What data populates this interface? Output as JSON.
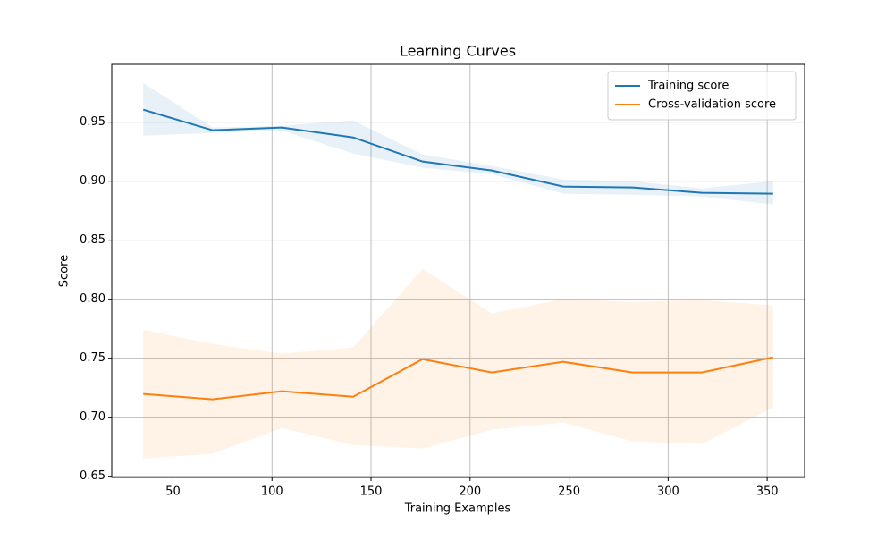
{
  "chart_data": {
    "type": "line",
    "title": "Learning Curves",
    "x_label": "Training Examples",
    "y_label": "Score",
    "x": [
      35,
      70,
      105,
      141,
      176,
      211,
      247,
      282,
      317,
      353
    ],
    "series": [
      {
        "name": "Training score",
        "color": "#1f77b4",
        "values": [
          0.9606,
          0.9432,
          0.9455,
          0.9371,
          0.9167,
          0.9091,
          0.8955,
          0.8947,
          0.8902,
          0.8894
        ],
        "band_lower": [
          0.9386,
          0.9409,
          0.943,
          0.9235,
          0.9114,
          0.906,
          0.8894,
          0.8886,
          0.8871,
          0.8803
        ],
        "band_upper": [
          0.9833,
          0.9455,
          0.947,
          0.9515,
          0.9227,
          0.9129,
          0.9015,
          0.9,
          0.894,
          0.9
        ]
      },
      {
        "name": "Cross-validation score",
        "color": "#ff7f0e",
        "values": [
          0.7197,
          0.7152,
          0.722,
          0.7174,
          0.7492,
          0.7379,
          0.747,
          0.7379,
          0.7379,
          0.7508
        ],
        "band_lower": [
          0.6652,
          0.669,
          0.6909,
          0.6765,
          0.6735,
          0.6894,
          0.6955,
          0.6795,
          0.6773,
          0.7083
        ],
        "band_upper": [
          0.7742,
          0.7621,
          0.7538,
          0.7591,
          0.8258,
          0.7879,
          0.8,
          0.7977,
          0.7992,
          0.7947
        ]
      }
    ],
    "band_opacity": 0.1,
    "xlim": [
      19.1,
      368.9
    ],
    "ylim": [
      0.649,
      0.999
    ],
    "xticks": [
      50,
      100,
      150,
      200,
      250,
      300,
      350
    ],
    "yticks": [
      0.65,
      {
        "value": 0.7,
        "label": "0.70"
      },
      0.75,
      {
        "value": 0.8,
        "label": "0.80"
      },
      0.85,
      {
        "value": 0.9,
        "label": "0.90"
      },
      0.95
    ],
    "grid": true,
    "legend": "upper right"
  }
}
